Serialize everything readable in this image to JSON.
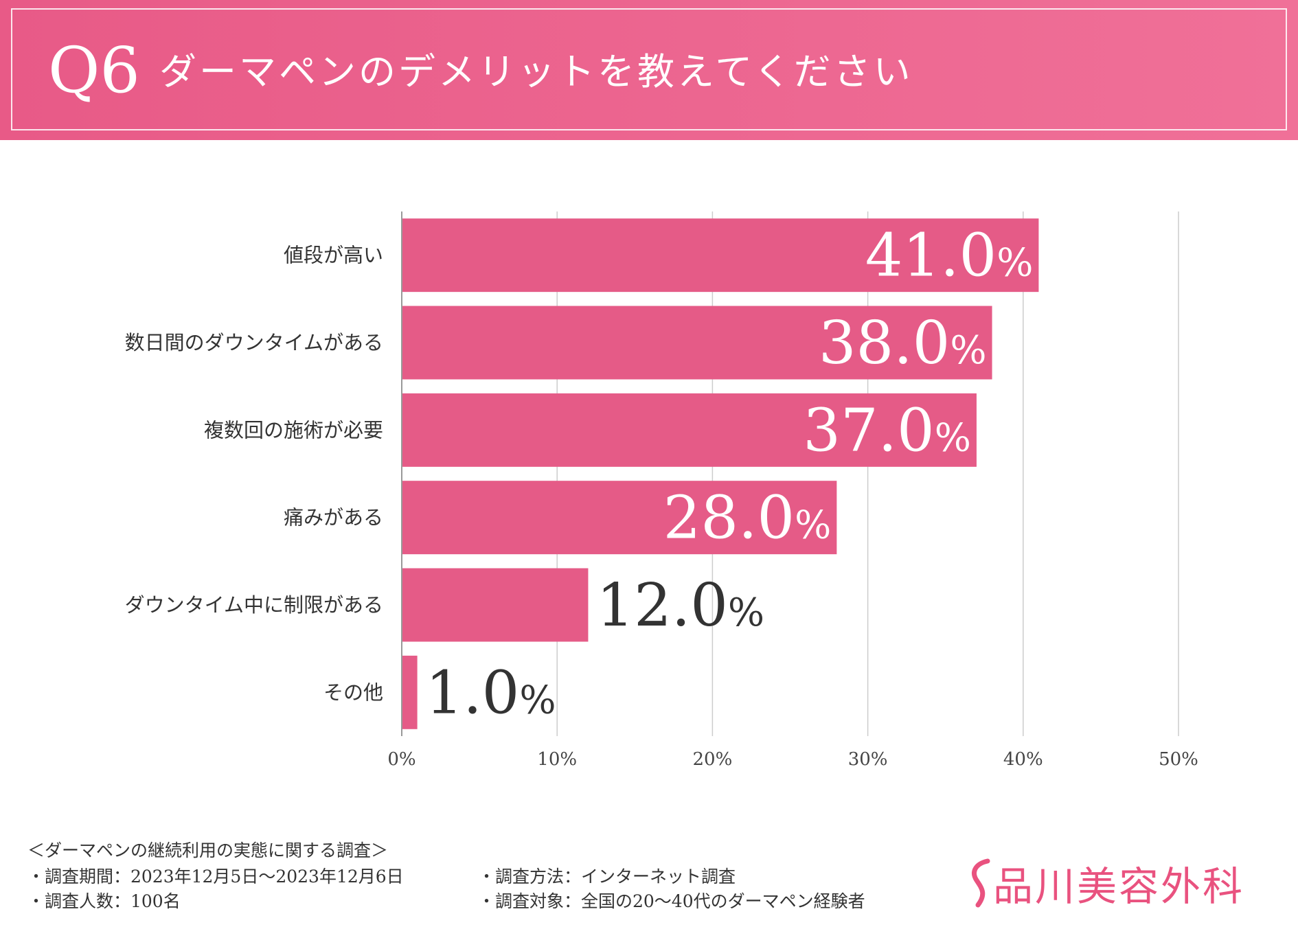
{
  "header": {
    "question_number": "Q6",
    "title": "ダーマペンのデメリットを教えてください"
  },
  "colors": {
    "header_start": "#e85a87",
    "header_end": "#f07098",
    "bar": "#e55b87",
    "grid": "#cccccc",
    "axis": "#999999",
    "logo": "#e9527f"
  },
  "chart_data": {
    "type": "bar",
    "orientation": "horizontal",
    "categories": [
      "値段が高い",
      "数日間のダウンタイムがある",
      "複数回の施術が必要",
      "痛みがある",
      "ダウンタイム中に制限がある",
      "その他"
    ],
    "values": [
      41.0,
      38.0,
      37.0,
      28.0,
      12.0,
      1.0
    ],
    "data_labels": [
      "41.0",
      "38.0",
      "37.0",
      "28.0",
      "12.0",
      "1.0"
    ],
    "label_suffix": "%",
    "xlim": [
      0,
      50
    ],
    "x_ticks": [
      "0%",
      "10%",
      "20%",
      "30%",
      "40%",
      "50%"
    ],
    "grid": true,
    "title": "",
    "xlabel": "",
    "ylabel": ""
  },
  "footer": {
    "survey_title": "＜ダーマペンの継続利用の実態に関する調査＞",
    "period": "・調査期間：2023年12月5日〜2023年12月6日",
    "respondents": "・調査人数：100名",
    "method": "・調査方法：インターネット調査",
    "target": "・調査対象：全国の20〜40代のダーマペン経験者"
  },
  "logo": {
    "text": "品川美容外科"
  }
}
